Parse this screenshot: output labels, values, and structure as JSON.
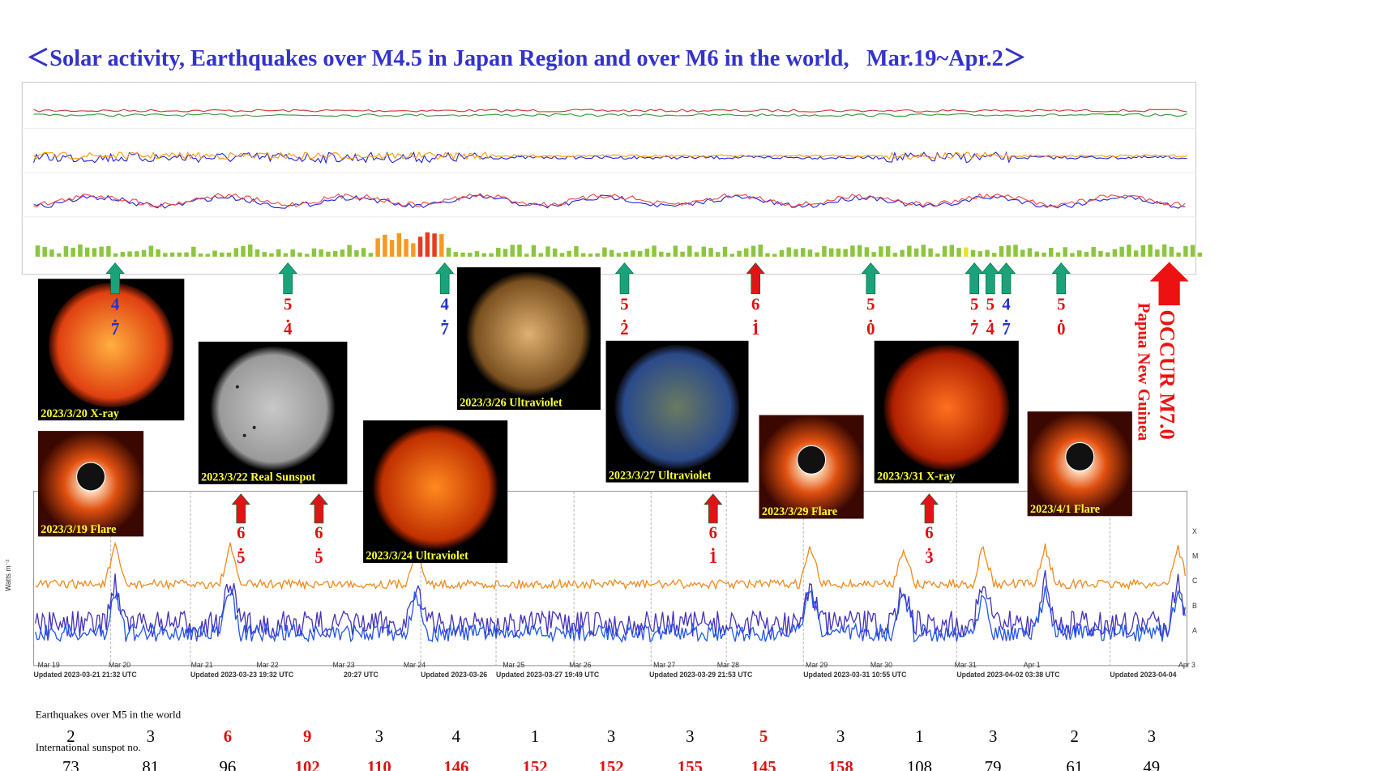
{
  "title": "＜Solar activity, Earthquakes over M4.5 in Japan Region and over M6 in the world,   Mar.19~Apr.2＞",
  "japan_quakes": [
    {
      "magnitude": "4.7",
      "color": "#2233cc"
    },
    {
      "magnitude": "5.4",
      "color": "#dd1111"
    },
    {
      "magnitude": "4.7",
      "color": "#2233cc"
    },
    {
      "magnitude": "5.2",
      "color": "#dd1111"
    },
    {
      "magnitude": "6.1",
      "color": "#dd1111"
    },
    {
      "magnitude": "5.0",
      "color": "#dd1111"
    },
    {
      "magnitude": "5.7",
      "color": "#dd1111"
    },
    {
      "magnitude": "5.4",
      "color": "#dd1111"
    },
    {
      "magnitude": "4.7",
      "color": "#2233cc"
    },
    {
      "magnitude": "5.0",
      "color": "#dd1111"
    }
  ],
  "world_quakes": [
    {
      "magnitude": "6.5"
    },
    {
      "magnitude": "6.5"
    },
    {
      "magnitude": "6.1"
    },
    {
      "magnitude": "6.3"
    }
  ],
  "major_event": {
    "label": "OCCUR M7.0",
    "place": "Papua New Guinea"
  },
  "images": [
    {
      "caption": "2023/3/20 X-ray"
    },
    {
      "caption": "2023/3/22 Real Sunspot"
    },
    {
      "caption": "2023/3/24 Ultraviolet"
    },
    {
      "caption": "2023/3/26 Ultraviolet"
    },
    {
      "caption": "2023/3/27 Ultraviolet"
    },
    {
      "caption": "2023/3/31 X-ray"
    },
    {
      "caption": "2023/3/19 Flare"
    },
    {
      "caption": "2023/3/29 Flare"
    },
    {
      "caption": "2023/4/1 Flare"
    }
  ],
  "goes": {
    "y_label": "Watts m⁻²",
    "classes": [
      "X",
      "M",
      "C",
      "B",
      "A"
    ],
    "dates": [
      "Mar 19",
      "Mar 20",
      "Mar 21",
      "Mar 22",
      "Mar 23",
      "Mar 24",
      "Mar 25",
      "Mar 26",
      "Mar 27",
      "Mar 28",
      "Mar 29",
      "Mar 30",
      "Mar 31",
      "Apr 1",
      "Apr 3"
    ],
    "updated": [
      "Updated 2023-03-21 21:32 UTC",
      "Updated 2023-03-23 19:32 UTC",
      "20:27 UTC",
      "Updated 2023-03-26",
      "Updated 2023-03-27 19:49 UTC",
      "Updated 2023-03-29 21:53 UTC",
      "Updated 2023-03-31 10:55 UTC",
      "Updated 2023-04-02 03:38 UTC",
      "Updated 2023-04-04"
    ]
  },
  "table": {
    "rows": [
      {
        "label": "Earthquakes over M5 in the world",
        "values": [
          2,
          3,
          6,
          9,
          3,
          4,
          1,
          3,
          3,
          5,
          3,
          1,
          3,
          2,
          3
        ],
        "colors": [
          "#000",
          "#000",
          "#dd1111",
          "#dd1111",
          "#000",
          "#000",
          "#000",
          "#000",
          "#000",
          "#dd1111",
          "#000",
          "#000",
          "#000",
          "#000",
          "#000"
        ]
      },
      {
        "label": "International sunspot no.",
        "values": [
          73,
          81,
          96,
          102,
          110,
          146,
          152,
          152,
          155,
          145,
          158,
          108,
          79,
          61,
          49
        ],
        "colors": [
          "#000",
          "#000",
          "#000",
          "#dd1111",
          "#dd1111",
          "#dd1111",
          "#dd1111",
          "#dd1111",
          "#dd1111",
          "#dd1111",
          "#dd1111",
          "#000",
          "#000",
          "#000",
          "#000"
        ]
      }
    ]
  }
}
